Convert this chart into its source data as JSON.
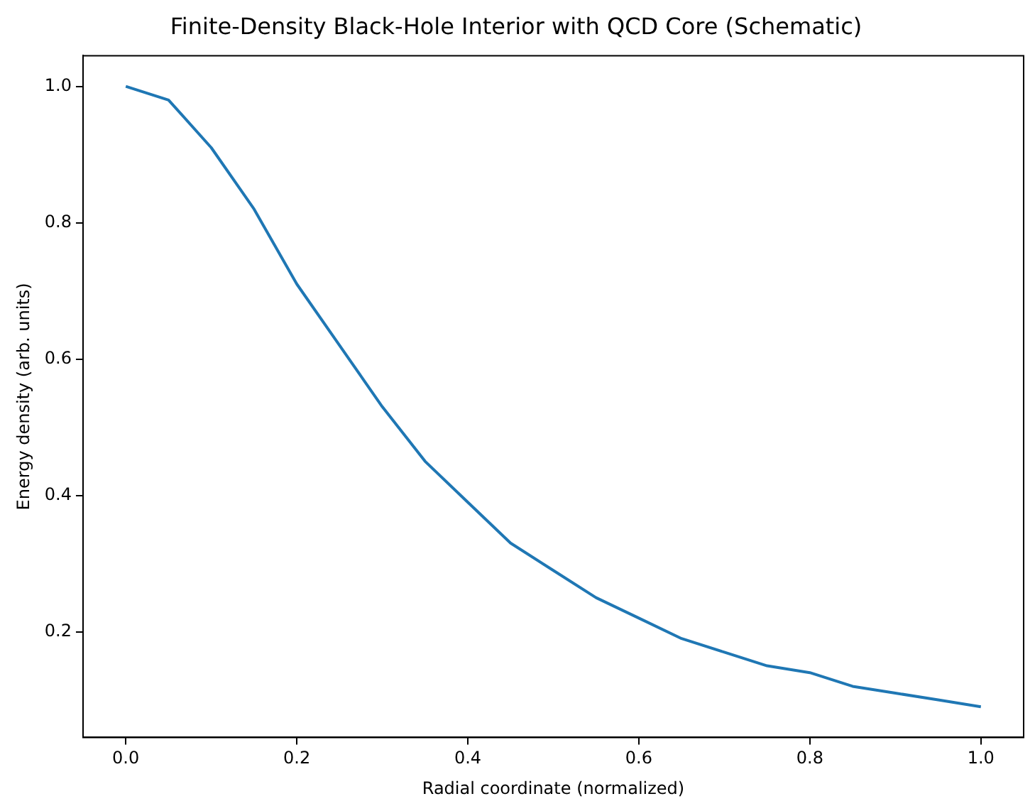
{
  "chart_data": {
    "type": "line",
    "title": "Finite-Density Black-Hole Interior with QCD Core (Schematic)",
    "xlabel": "Radial coordinate (normalized)",
    "ylabel": "Energy density (arb. units)",
    "x": [
      0,
      0.05,
      0.1,
      0.15,
      0.2,
      0.25,
      0.3,
      0.35,
      0.4,
      0.45,
      0.5,
      0.55,
      0.6,
      0.65,
      0.7,
      0.75,
      0.8,
      0.85,
      0.9,
      0.95,
      1.0
    ],
    "series": [
      {
        "color": "#1f77b4",
        "values": [
          1.0,
          0.98,
          0.91,
          0.82,
          0.71,
          0.62,
          0.53,
          0.45,
          0.39,
          0.33,
          0.29,
          0.25,
          0.22,
          0.19,
          0.17,
          0.15,
          0.14,
          0.12,
          0.11,
          0.1,
          0.09
        ]
      }
    ],
    "xlim": [
      -0.05,
      1.05
    ],
    "ylim": [
      0.045,
      1.045
    ],
    "xticks": [
      {
        "value": 0,
        "label": "0.0"
      },
      {
        "value": 0.2,
        "label": "0.2"
      },
      {
        "value": 0.4,
        "label": "0.4"
      },
      {
        "value": 0.6,
        "label": "0.6"
      },
      {
        "value": 0.8,
        "label": "0.8"
      },
      {
        "value": 1.0,
        "label": "1.0"
      }
    ],
    "yticks": [
      {
        "value": 0.2,
        "label": "0.2"
      },
      {
        "value": 0.4,
        "label": "0.4"
      },
      {
        "value": 0.6,
        "label": "0.6"
      },
      {
        "value": 0.8,
        "label": "0.8"
      },
      {
        "value": 1.0,
        "label": "1.0"
      }
    ],
    "grid": false,
    "legend": false,
    "marker": "none",
    "line_style": "solid"
  }
}
